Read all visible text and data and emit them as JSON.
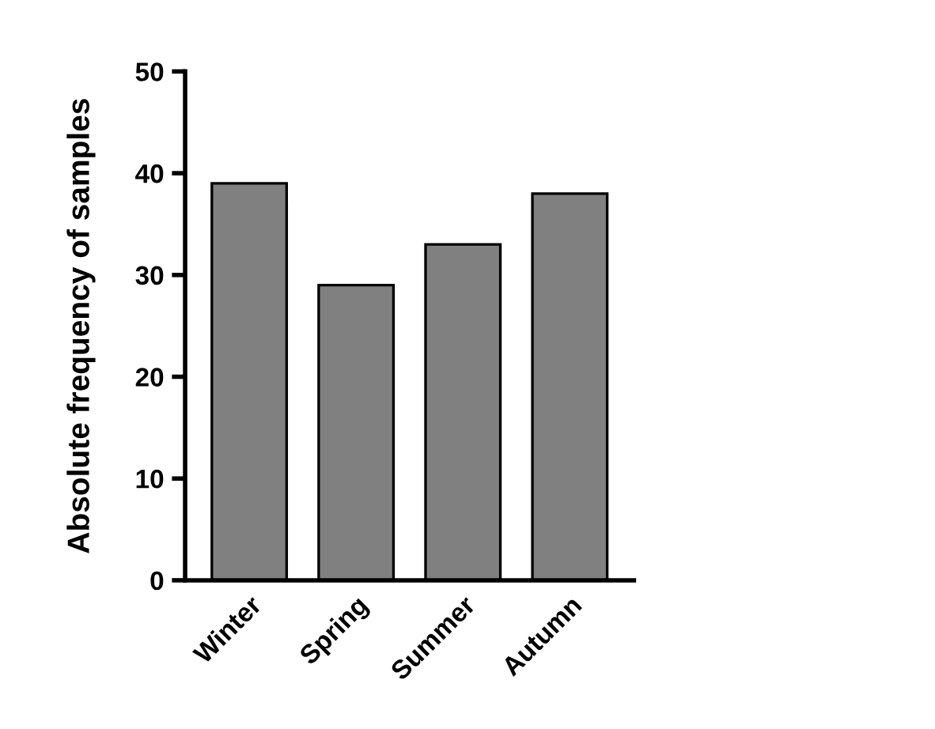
{
  "chart_data": {
    "type": "bar",
    "ylabel": "Absolute frequency of samples",
    "categories": [
      "Winter",
      "Spring",
      "Summer",
      "Autumn"
    ],
    "values": [
      39,
      29,
      33,
      38
    ],
    "color": "#808080",
    "ylim": [
      0,
      50
    ],
    "yticks": [
      0,
      10,
      20,
      30,
      40,
      50
    ],
    "grid": false,
    "legend": false
  }
}
